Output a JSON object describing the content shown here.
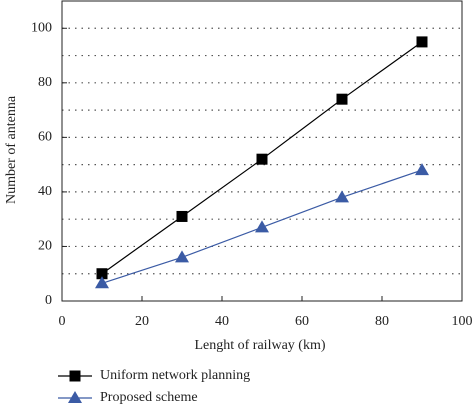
{
  "chart_data": {
    "type": "line",
    "x_label": "Lenght of railway (km)",
    "y_label": "Number of antenna",
    "xlim": [
      0,
      100
    ],
    "xticks": [
      0,
      20,
      40,
      60,
      80,
      100
    ],
    "ylim": [
      0,
      110
    ],
    "yticks": [
      0,
      20,
      40,
      60,
      80,
      100
    ],
    "ygrid": [
      10,
      20,
      30,
      40,
      50,
      60,
      70,
      80,
      90,
      100
    ],
    "grid": true,
    "x": [
      10,
      30,
      50,
      70,
      90
    ],
    "series": [
      {
        "name": "Uniform network planning",
        "color": "#000000",
        "marker": "square",
        "values": [
          10,
          31,
          52,
          74,
          95
        ]
      },
      {
        "name": "Proposed scheme",
        "color": "#3b5ba5",
        "marker": "triangle",
        "values": [
          6.5,
          16,
          27,
          38,
          48
        ]
      }
    ]
  }
}
